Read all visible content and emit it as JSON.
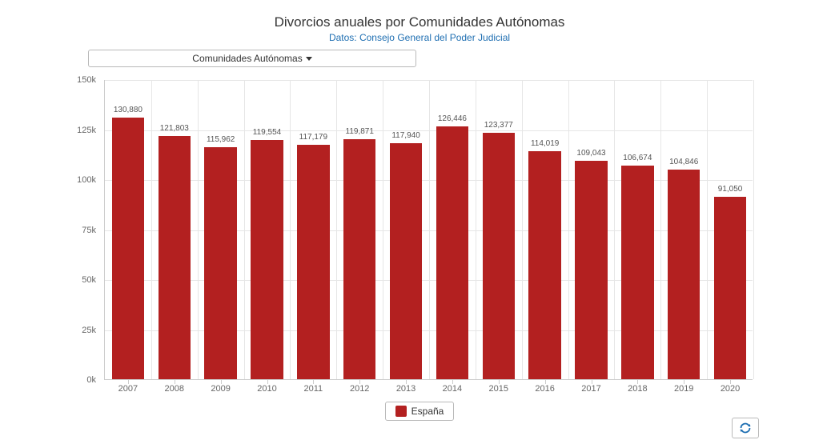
{
  "title": "Divorcios anuales por Comunidades Autónomas",
  "subtitle": "Datos: Consejo General del Poder Judicial",
  "dropdown_label": "Comunidades Autónomas",
  "chart": {
    "type": "bar",
    "categories": [
      "2007",
      "2008",
      "2009",
      "2010",
      "2011",
      "2012",
      "2013",
      "2014",
      "2015",
      "2016",
      "2017",
      "2018",
      "2019",
      "2020"
    ],
    "values": [
      130880,
      121803,
      115962,
      119554,
      117179,
      119871,
      117940,
      126446,
      123377,
      114019,
      109043,
      106674,
      104846,
      91050
    ],
    "value_labels": [
      "130,880",
      "121,803",
      "115,962",
      "119,554",
      "117,179",
      "119,871",
      "117,940",
      "126,446",
      "123,377",
      "114,019",
      "109,043",
      "106,674",
      "104,846",
      "91,050"
    ],
    "bar_color": "#b32020",
    "ylim": [
      0,
      150000
    ],
    "ytick_step": 25000,
    "ytick_labels": [
      "0k",
      "25k",
      "50k",
      "75k",
      "100k",
      "125k",
      "150k"
    ],
    "grid_color": "#e6e6e6",
    "axis_color": "#cccccc",
    "background_color": "#ffffff",
    "bar_width_ratio": 0.7,
    "label_fontsize": 10,
    "axis_fontsize": 11
  },
  "legend": {
    "label": "España",
    "swatch_color": "#b32020"
  },
  "subtitle_color": "#1f6fb2",
  "refresh_icon_color": "#1f6fb2"
}
